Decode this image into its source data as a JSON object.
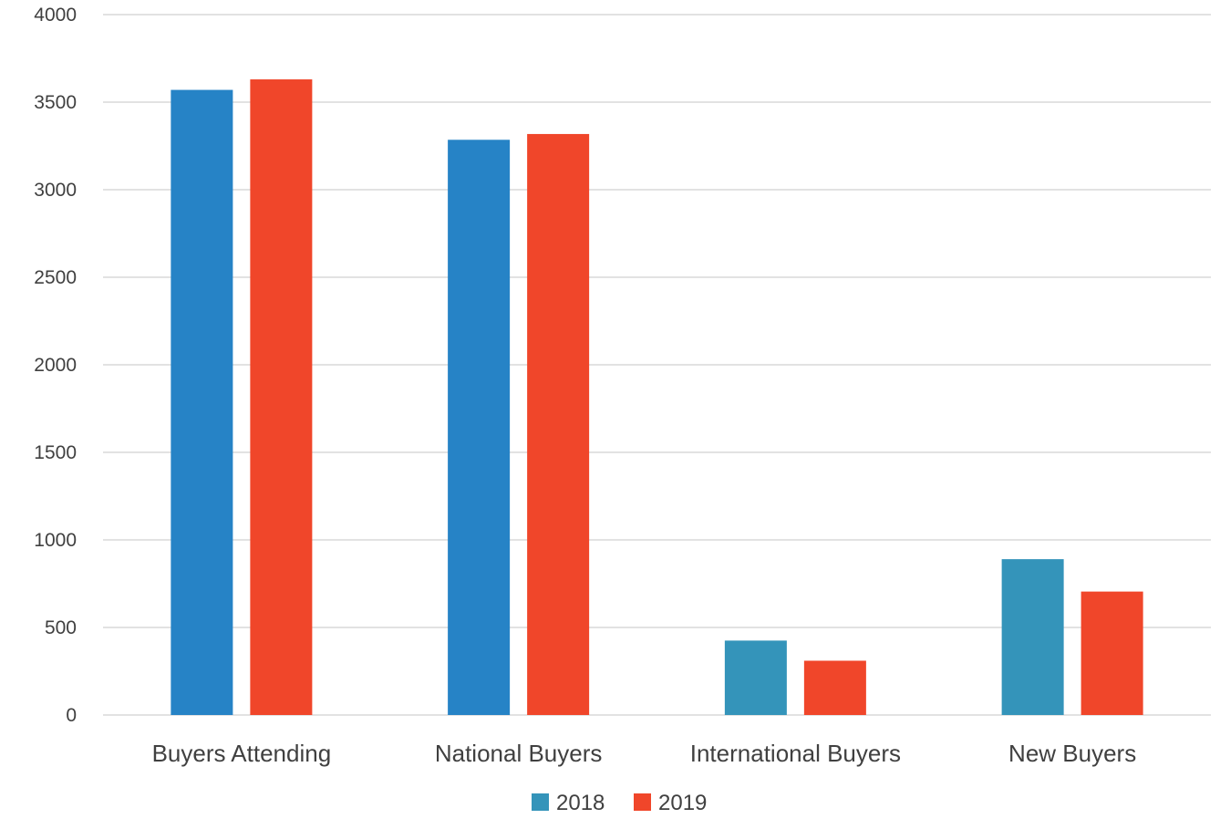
{
  "chart_data": {
    "type": "bar",
    "title": "",
    "xlabel": "",
    "ylabel": "",
    "categories": [
      "Buyers Attending",
      "National Buyers",
      "International Buyers",
      "New Buyers"
    ],
    "series": [
      {
        "name": "2018",
        "values": [
          3570,
          3285,
          425,
          890
        ],
        "colors": [
          "#2683C6",
          "#2683C6",
          "#3494BA",
          "#3494BA"
        ]
      },
      {
        "name": "2019",
        "values": [
          3630,
          3318,
          310,
          705
        ],
        "colors": [
          "#F0462A",
          "#F0462A",
          "#F0462A",
          "#F0462A"
        ]
      }
    ],
    "ylim": [
      0,
      4000
    ],
    "yticks": [
      "0",
      "500",
      "1000",
      "1500",
      "2000",
      "2500",
      "3000",
      "3500",
      "4000"
    ],
    "grid": true,
    "gridline_color": "#D9D9D9",
    "legend_position": "bottom",
    "legend_colors": [
      "#3494BA",
      "#F0462A"
    ]
  }
}
